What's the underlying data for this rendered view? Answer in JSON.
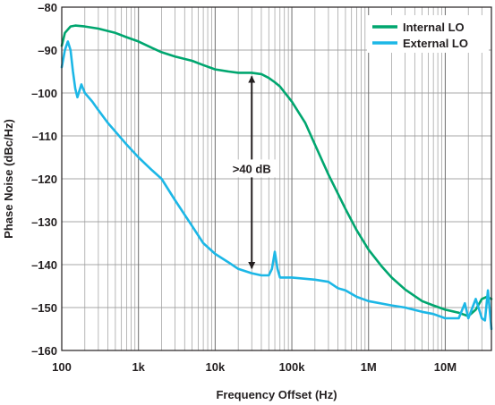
{
  "chart_data": {
    "type": "line",
    "xlabel": "Frequency Offset (Hz)",
    "ylabel": "Phase Noise (dBc/Hz)",
    "x_scale": "log",
    "xlim": [
      100,
      40000000
    ],
    "ylim": [
      -160,
      -80
    ],
    "grid": true,
    "legend_position": "top-right",
    "x_ticks": [
      {
        "value": 100,
        "label": "100"
      },
      {
        "value": 1000,
        "label": "1k"
      },
      {
        "value": 10000,
        "label": "10k"
      },
      {
        "value": 100000,
        "label": "100k"
      },
      {
        "value": 1000000,
        "label": "1M"
      },
      {
        "value": 10000000,
        "label": "10M"
      }
    ],
    "y_ticks": [
      {
        "value": -80,
        "label": "–80"
      },
      {
        "value": -90,
        "label": "–90"
      },
      {
        "value": -100,
        "label": "–100"
      },
      {
        "value": -110,
        "label": "–110"
      },
      {
        "value": -120,
        "label": "–120"
      },
      {
        "value": -130,
        "label": "–130"
      },
      {
        "value": -140,
        "label": "–140"
      },
      {
        "value": -150,
        "label": "–150"
      },
      {
        "value": -160,
        "label": "–160"
      }
    ],
    "series": [
      {
        "name": "Internal LO",
        "color": "#00a66f",
        "x": [
          100,
          110,
          130,
          150,
          200,
          300,
          500,
          700,
          1000,
          1500,
          2000,
          3000,
          5000,
          7000,
          10000,
          15000,
          20000,
          30000,
          40000,
          50000,
          60000,
          70000,
          100000,
          150000,
          200000,
          300000,
          500000,
          700000,
          1000000,
          1500000,
          2000000,
          3000000,
          5000000,
          7000000,
          10000000,
          15000000,
          20000000,
          25000000,
          30000000,
          35000000,
          40000000
        ],
        "y": [
          -89,
          -86,
          -84.5,
          -84.3,
          -84.5,
          -85,
          -86,
          -87,
          -88,
          -89.5,
          -90.5,
          -91.5,
          -92.5,
          -93.5,
          -94.5,
          -95,
          -95.3,
          -95.3,
          -95.6,
          -96.5,
          -97.5,
          -98.5,
          -102,
          -107,
          -112,
          -119,
          -127,
          -132,
          -136.5,
          -140.5,
          -143,
          -145.8,
          -148.5,
          -149.5,
          -150.5,
          -151.2,
          -152,
          -150.5,
          -148,
          -147.5,
          -148
        ]
      },
      {
        "name": "External LO",
        "color": "#1cb7e6",
        "x": [
          100,
          110,
          120,
          130,
          140,
          150,
          160,
          180,
          200,
          250,
          300,
          400,
          500,
          700,
          1000,
          1500,
          2000,
          3000,
          5000,
          7000,
          10000,
          15000,
          20000,
          30000,
          40000,
          50000,
          55000,
          60000,
          65000,
          70000,
          100000,
          200000,
          300000,
          400000,
          500000,
          700000,
          1000000,
          2000000,
          3000000,
          5000000,
          7000000,
          10000000,
          15000000,
          18000000,
          20000000,
          25000000,
          30000000,
          33000000,
          36000000,
          40000000
        ],
        "y": [
          -94,
          -90,
          -88,
          -90,
          -95,
          -99,
          -101,
          -98,
          -100,
          -102,
          -104,
          -107,
          -109,
          -112,
          -115,
          -118,
          -120,
          -125,
          -131,
          -135,
          -137.5,
          -139.5,
          -141,
          -142,
          -142.5,
          -142.5,
          -141,
          -137,
          -141,
          -143,
          -143,
          -143.5,
          -144,
          -145.5,
          -146,
          -147.5,
          -148.5,
          -149.5,
          -150,
          -151,
          -151.5,
          -152.5,
          -152.5,
          -149,
          -152.5,
          -148,
          -152.5,
          -153,
          -146,
          -155
        ]
      }
    ],
    "annotations": [
      {
        "text": ">40 dB",
        "x": 30000,
        "y_from": -95.5,
        "y_to": -141.5,
        "y_text": -118
      }
    ]
  }
}
